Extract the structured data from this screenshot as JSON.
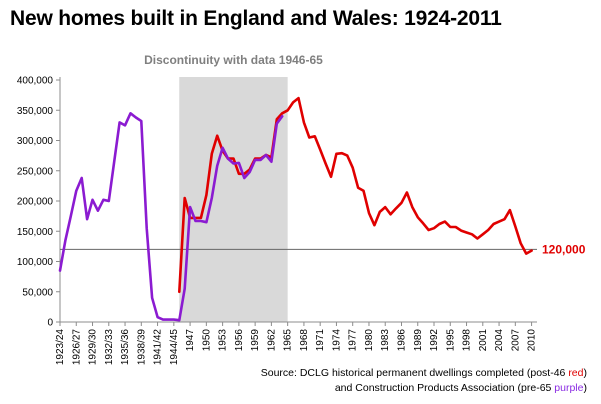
{
  "chart_data": {
    "type": "line",
    "title": "New homes built in England and Wales: 1924-2011",
    "annotation": "Discontinuity with data 1946-65",
    "discontinuity_range": [
      "1946",
      "1965"
    ],
    "ylim": [
      0,
      400000
    ],
    "yticks": [
      "0",
      "50,000",
      "100,000",
      "150,000",
      "200,000",
      "250,000",
      "300,000",
      "350,000",
      "400,000"
    ],
    "ytick_values": [
      0,
      50000,
      100000,
      150000,
      200000,
      250000,
      300000,
      350000,
      400000
    ],
    "xtick_labels": [
      "1923/24",
      "1926/27",
      "1929/30",
      "1932/33",
      "1935/36",
      "1938/39",
      "1941/42",
      "1944/45",
      "1947",
      "1950",
      "1953",
      "1956",
      "1959",
      "1962",
      "1965",
      "1968",
      "1971",
      "1974",
      "1977",
      "1980",
      "1983",
      "1986",
      "1989",
      "1992",
      "1995",
      "1998",
      "2001",
      "2004",
      "2007",
      "2010"
    ],
    "reference_line": {
      "value": 120000,
      "label": "120,000",
      "color": "#e00000"
    },
    "series": [
      {
        "color": "#8b1bd1",
        "x": [
          1924,
          1925,
          1926,
          1927,
          1928,
          1929,
          1930,
          1931,
          1932,
          1933,
          1934,
          1935,
          1936,
          1937,
          1938,
          1939,
          1940,
          1941,
          1942,
          1943,
          1944,
          1945,
          1946,
          1947,
          1948,
          1949,
          1950,
          1951,
          1952,
          1953,
          1954,
          1955,
          1956,
          1957,
          1958,
          1959,
          1960,
          1961,
          1962,
          1963,
          1964,
          1965
        ],
        "values": [
          85000,
          135000,
          175000,
          217000,
          238000,
          170000,
          202000,
          184000,
          202000,
          200000,
          265000,
          330000,
          325000,
          345000,
          338000,
          332000,
          155000,
          40000,
          8000,
          4000,
          4000,
          4000,
          3000,
          55000,
          190000,
          167000,
          167000,
          165000,
          205000,
          258000,
          288000,
          270000,
          262000,
          263000,
          238000,
          248000,
          268000,
          268000,
          276000,
          265000,
          328000,
          340000
        ]
      },
      {
        "color": "#e00000",
        "x": [
          1946,
          1947,
          1948,
          1949,
          1950,
          1951,
          1952,
          1953,
          1954,
          1955,
          1956,
          1957,
          1958,
          1959,
          1960,
          1961,
          1962,
          1963,
          1964,
          1965,
          1966,
          1967,
          1968,
          1969,
          1970,
          1971,
          1972,
          1973,
          1974,
          1975,
          1976,
          1977,
          1978,
          1979,
          1980,
          1981,
          1982,
          1983,
          1984,
          1985,
          1986,
          1987,
          1988,
          1989,
          1990,
          1991,
          1992,
          1993,
          1994,
          1995,
          1996,
          1997,
          1998,
          1999,
          2000,
          2001,
          2002,
          2003,
          2004,
          2005,
          2006,
          2007,
          2008,
          2009,
          2010,
          2011
        ],
        "values": [
          50000,
          205000,
          172000,
          172000,
          172000,
          210000,
          278000,
          308000,
          283000,
          270000,
          270000,
          245000,
          245000,
          252000,
          270000,
          270000,
          276000,
          272000,
          335000,
          345000,
          350000,
          363000,
          370000,
          330000,
          305000,
          307000,
          285000,
          262000,
          240000,
          278000,
          279000,
          275000,
          255000,
          222000,
          217000,
          180000,
          160000,
          182000,
          190000,
          178000,
          188000,
          197000,
          214000,
          190000,
          173000,
          163000,
          152000,
          155000,
          162000,
          166000,
          157000,
          157000,
          151000,
          148000,
          145000,
          138000,
          145000,
          152000,
          162000,
          166000,
          170000,
          185000,
          158000,
          130000,
          113000,
          118000
        ]
      }
    ]
  },
  "source": {
    "line1_prefix": "Source: DCLG historical permanent dwellings completed (post-46 ",
    "line1_highlight": "red",
    "line1_suffix": ")",
    "line2_prefix": "and Construction Products Association (pre-65 ",
    "line2_highlight": "purple",
    "line2_suffix": ")"
  }
}
